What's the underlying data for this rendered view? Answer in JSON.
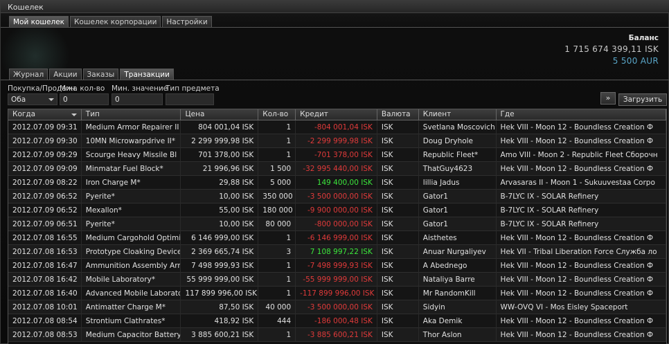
{
  "window": {
    "title": "Кошелек"
  },
  "top_tabs": [
    {
      "label": "Мой кошелек",
      "active": true
    },
    {
      "label": "Кошелек корпорации",
      "active": false
    },
    {
      "label": "Настройки",
      "active": false
    }
  ],
  "balance": {
    "label": "Баланс",
    "isk": "1 715 674 399,11 ISK",
    "aur": "5 500 AUR",
    "aur_color": "#5aa6c8"
  },
  "sub_tabs": [
    {
      "label": "Журнал",
      "active": false
    },
    {
      "label": "Акции",
      "active": false
    },
    {
      "label": "Заказы",
      "active": false
    },
    {
      "label": "Транзакции",
      "active": true
    }
  ],
  "filters": {
    "buy_sell": {
      "label": "Покупка/Продажа",
      "value": "Оба"
    },
    "min_qty": {
      "label": "Мин. кол-во",
      "value": "0"
    },
    "min_value": {
      "label": "Мин. значение",
      "value": "0"
    },
    "item_type": {
      "label": "Тип предмета",
      "value": ""
    },
    "expand_glyph": "»",
    "load_button": "Загрузить"
  },
  "table": {
    "columns": [
      "Когда",
      "Тип",
      "Цена",
      "Кол-во",
      "Кредит",
      "Валюта",
      "Клиент",
      "Где"
    ],
    "rows": [
      {
        "when": "2012.07.09 09:31",
        "type": "Medium Armor Repairer II",
        "price": "804 001,04 ISK",
        "qty": "1",
        "credit": "-804 001,04 ISK",
        "sign": "neg",
        "currency": "ISK",
        "client": "Svetlana Moscovich",
        "where": "Hek VIII - Moon 12 - Boundless Creation Ф"
      },
      {
        "when": "2012.07.09 09:30",
        "type": "10MN Microwarpdrive II*",
        "price": "2 299 999,98 ISK",
        "qty": "1",
        "credit": "-2 299 999,98 ISK",
        "sign": "neg",
        "currency": "ISK",
        "client": "Doug Dryhole",
        "where": "Hek VIII - Moon 12 - Boundless Creation Ф"
      },
      {
        "when": "2012.07.09 09:29",
        "type": "Scourge Heavy Missile Bl",
        "price": "701 378,00 ISK",
        "qty": "1",
        "credit": "-701 378,00 ISK",
        "sign": "neg",
        "currency": "ISK",
        "client": "Republic Fleet*",
        "where": "Amo VIII - Moon 2 - Republic Fleet Сборочн"
      },
      {
        "when": "2012.07.09 09:09",
        "type": "Minmatar Fuel Block*",
        "price": "21 996,96 ISK",
        "qty": "1 500",
        "credit": "-32 995 440,00 ISK",
        "sign": "neg",
        "currency": "ISK",
        "client": "ThatGuy4623",
        "where": "Hek VIII - Moon 12 - Boundless Creation Ф"
      },
      {
        "when": "2012.07.09 08:22",
        "type": "Iron Charge M*",
        "price": "29,88 ISK",
        "qty": "5 000",
        "credit": "149 400,00 ISK",
        "sign": "pos",
        "currency": "ISK",
        "client": "lillia Jadus",
        "where": "Arvasaras II - Moon 1 - Sukuuvestaa Corpo"
      },
      {
        "when": "2012.07.09 06:52",
        "type": "Pyerite*",
        "price": "10,00 ISK",
        "qty": "350 000",
        "credit": "-3 500 000,00 ISK",
        "sign": "neg",
        "currency": "ISK",
        "client": "Gator1",
        "where": "B-7LYC IX - SOLAR Refinery"
      },
      {
        "when": "2012.07.09 06:52",
        "type": "Mexallon*",
        "price": "55,00 ISK",
        "qty": "180 000",
        "credit": "-9 900 000,00 ISK",
        "sign": "neg",
        "currency": "ISK",
        "client": "Gator1",
        "where": "B-7LYC IX - SOLAR Refinery"
      },
      {
        "when": "2012.07.09 06:51",
        "type": "Pyerite*",
        "price": "10,00 ISK",
        "qty": "80 000",
        "credit": "-800 000,00 ISK",
        "sign": "neg",
        "currency": "ISK",
        "client": "Gator1",
        "where": "B-7LYC IX - SOLAR Refinery"
      },
      {
        "when": "2012.07.08 16:55",
        "type": "Medium Cargohold Optimi",
        "price": "6 146 999,00 ISK",
        "qty": "1",
        "credit": "-6 146 999,00 ISK",
        "sign": "neg",
        "currency": "ISK",
        "client": "Aisthetes",
        "where": "Hek VIII - Moon 12 - Boundless Creation Ф"
      },
      {
        "when": "2012.07.08 16:53",
        "type": "Prototype Cloaking Device",
        "price": "2 369 665,74 ISK",
        "qty": "3",
        "credit": "7 108 997,22 ISK",
        "sign": "pos",
        "currency": "ISK",
        "client": "Anuar Nurgaliyev",
        "where": "Hek VII - Tribal Liberation Force Служба ло"
      },
      {
        "when": "2012.07.08 16:47",
        "type": "Ammunition Assembly Arr",
        "price": "7 498 999,93 ISK",
        "qty": "1",
        "credit": "-7 498 999,93 ISK",
        "sign": "neg",
        "currency": "ISK",
        "client": "A Abednego",
        "where": "Hek VIII - Moon 12 - Boundless Creation Ф"
      },
      {
        "when": "2012.07.08 16:42",
        "type": "Mobile Laboratory*",
        "price": "55 999 999,00 ISK",
        "qty": "1",
        "credit": "-55 999 999,00 ISK",
        "sign": "neg",
        "currency": "ISK",
        "client": "Nataliya Barre",
        "where": "Hek VIII - Moon 12 - Boundless Creation Ф"
      },
      {
        "when": "2012.07.08 16:40",
        "type": "Advanced Mobile Laborato",
        "price": "117 899 996,00 ISK",
        "qty": "1",
        "credit": "-117 899 996,00 ISK",
        "sign": "neg",
        "currency": "ISK",
        "client": "Mr RandomKill",
        "where": "Hek VIII - Moon 12 - Boundless Creation Ф"
      },
      {
        "when": "2012.07.08 10:01",
        "type": "Antimatter Charge M*",
        "price": "87,50 ISK",
        "qty": "40 000",
        "credit": "-3 500 000,00 ISK",
        "sign": "neg",
        "currency": "ISK",
        "client": "Sidyin",
        "where": "WW-OVQ VI - Mos Eisley Spaceport"
      },
      {
        "when": "2012.07.08 08:54",
        "type": "Strontium Clathrates*",
        "price": "418,92 ISK",
        "qty": "444",
        "credit": "-186 000,48 ISK",
        "sign": "neg",
        "currency": "ISK",
        "client": "Aka Demik",
        "where": "Hek VIII - Moon 12 - Boundless Creation Ф"
      },
      {
        "when": "2012.07.08 08:53",
        "type": "Medium Capacitor Battery",
        "price": "3 885 600,21 ISK",
        "qty": "1",
        "credit": "-3 885 600,21 ISK",
        "sign": "neg",
        "currency": "ISK",
        "client": "Thor Aslon",
        "where": "Hek VIII - Moon 12 - Boundless Creation Ф"
      }
    ]
  }
}
